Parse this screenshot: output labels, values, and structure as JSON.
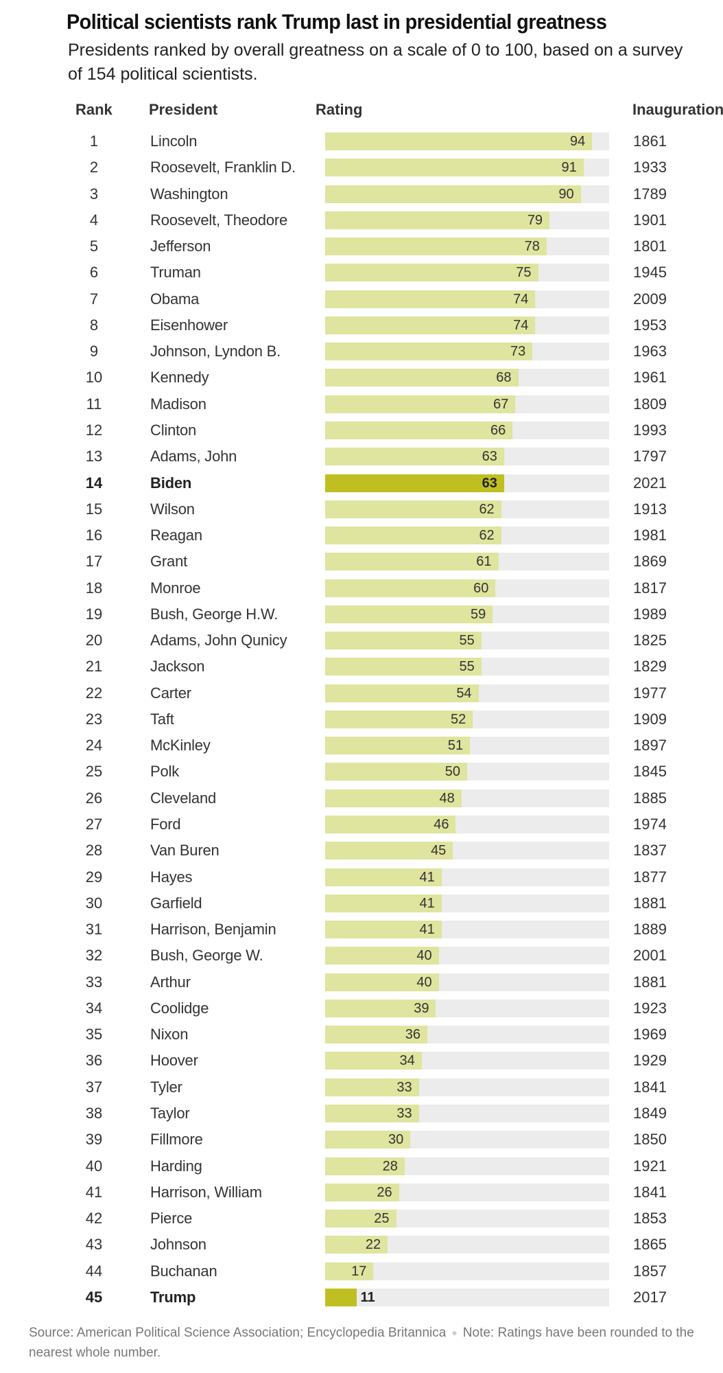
{
  "header": {
    "title": "Political scientists rank Trump last in presidential greatness",
    "subtitle": "Presidents ranked by overall greatness on a scale of 0 to 100, based on a survey of 154 political scientists."
  },
  "columns": {
    "rank": "Rank",
    "president": "President",
    "rating": "Rating",
    "inauguration": "Inauguration"
  },
  "colors": {
    "bar": "#dfe49e",
    "highlight_bar": "#bfbf22",
    "track": "#ececec"
  },
  "footer": {
    "source": "Source: American Political Science Association; Encyclopedia Britannica",
    "separator": "●",
    "note": "Note: Ratings have been rounded to the nearest whole number."
  },
  "chart_data": {
    "type": "bar",
    "title": "Political scientists rank Trump last in presidential greatness",
    "subtitle": "Presidents ranked by overall greatness on a scale of 0 to 100, based on a survey of 154 political scientists.",
    "xlabel": "Rating",
    "xlim": [
      0,
      100
    ],
    "orientation": "horizontal",
    "highlighted": [
      "Biden",
      "Trump"
    ],
    "rows": [
      {
        "rank": 1,
        "president": "Lincoln",
        "rating": 94,
        "inauguration": "1861"
      },
      {
        "rank": 2,
        "president": "Roosevelt, Franklin D.",
        "rating": 91,
        "inauguration": "1933"
      },
      {
        "rank": 3,
        "president": "Washington",
        "rating": 90,
        "inauguration": "1789"
      },
      {
        "rank": 4,
        "president": "Roosevelt, Theodore",
        "rating": 79,
        "inauguration": "1901"
      },
      {
        "rank": 5,
        "president": "Jefferson",
        "rating": 78,
        "inauguration": "1801"
      },
      {
        "rank": 6,
        "president": "Truman",
        "rating": 75,
        "inauguration": "1945"
      },
      {
        "rank": 7,
        "president": "Obama",
        "rating": 74,
        "inauguration": "2009"
      },
      {
        "rank": 8,
        "president": "Eisenhower",
        "rating": 74,
        "inauguration": "1953"
      },
      {
        "rank": 9,
        "president": "Johnson, Lyndon B.",
        "rating": 73,
        "inauguration": "1963"
      },
      {
        "rank": 10,
        "president": "Kennedy",
        "rating": 68,
        "inauguration": "1961"
      },
      {
        "rank": 11,
        "president": "Madison",
        "rating": 67,
        "inauguration": "1809"
      },
      {
        "rank": 12,
        "president": "Clinton",
        "rating": 66,
        "inauguration": "1993"
      },
      {
        "rank": 13,
        "president": "Adams, John",
        "rating": 63,
        "inauguration": "1797"
      },
      {
        "rank": 14,
        "president": "Biden",
        "rating": 63,
        "inauguration": "2021",
        "highlight": true
      },
      {
        "rank": 15,
        "president": "Wilson",
        "rating": 62,
        "inauguration": "1913"
      },
      {
        "rank": 16,
        "president": "Reagan",
        "rating": 62,
        "inauguration": "1981"
      },
      {
        "rank": 17,
        "president": "Grant",
        "rating": 61,
        "inauguration": "1869"
      },
      {
        "rank": 18,
        "president": "Monroe",
        "rating": 60,
        "inauguration": "1817"
      },
      {
        "rank": 19,
        "president": "Bush, George H.W.",
        "rating": 59,
        "inauguration": "1989"
      },
      {
        "rank": 20,
        "president": "Adams, John Qunicy",
        "rating": 55,
        "inauguration": "1825"
      },
      {
        "rank": 21,
        "president": "Jackson",
        "rating": 55,
        "inauguration": "1829"
      },
      {
        "rank": 22,
        "president": "Carter",
        "rating": 54,
        "inauguration": "1977"
      },
      {
        "rank": 23,
        "president": "Taft",
        "rating": 52,
        "inauguration": "1909"
      },
      {
        "rank": 24,
        "president": "McKinley",
        "rating": 51,
        "inauguration": "1897"
      },
      {
        "rank": 25,
        "president": "Polk",
        "rating": 50,
        "inauguration": "1845"
      },
      {
        "rank": 26,
        "president": "Cleveland",
        "rating": 48,
        "inauguration": "1885"
      },
      {
        "rank": 27,
        "president": "Ford",
        "rating": 46,
        "inauguration": "1974"
      },
      {
        "rank": 28,
        "president": "Van Buren",
        "rating": 45,
        "inauguration": "1837"
      },
      {
        "rank": 29,
        "president": "Hayes",
        "rating": 41,
        "inauguration": "1877"
      },
      {
        "rank": 30,
        "president": "Garfield",
        "rating": 41,
        "inauguration": "1881"
      },
      {
        "rank": 31,
        "president": "Harrison, Benjamin",
        "rating": 41,
        "inauguration": "1889"
      },
      {
        "rank": 32,
        "president": "Bush, George W.",
        "rating": 40,
        "inauguration": "2001"
      },
      {
        "rank": 33,
        "president": "Arthur",
        "rating": 40,
        "inauguration": "1881"
      },
      {
        "rank": 34,
        "president": "Coolidge",
        "rating": 39,
        "inauguration": "1923"
      },
      {
        "rank": 35,
        "president": "Nixon",
        "rating": 36,
        "inauguration": "1969"
      },
      {
        "rank": 36,
        "president": "Hoover",
        "rating": 34,
        "inauguration": "1929"
      },
      {
        "rank": 37,
        "president": "Tyler",
        "rating": 33,
        "inauguration": "1841"
      },
      {
        "rank": 38,
        "president": "Taylor",
        "rating": 33,
        "inauguration": "1849"
      },
      {
        "rank": 39,
        "president": "Fillmore",
        "rating": 30,
        "inauguration": "1850"
      },
      {
        "rank": 40,
        "president": "Harding",
        "rating": 28,
        "inauguration": "1921"
      },
      {
        "rank": 41,
        "president": "Harrison, William",
        "rating": 26,
        "inauguration": "1841"
      },
      {
        "rank": 42,
        "president": "Pierce",
        "rating": 25,
        "inauguration": "1853"
      },
      {
        "rank": 43,
        "president": "Johnson",
        "rating": 22,
        "inauguration": "1865"
      },
      {
        "rank": 44,
        "president": "Buchanan",
        "rating": 17,
        "inauguration": "1857"
      },
      {
        "rank": 45,
        "president": "Trump",
        "rating": 11,
        "inauguration": "2017",
        "highlight": true
      }
    ]
  }
}
